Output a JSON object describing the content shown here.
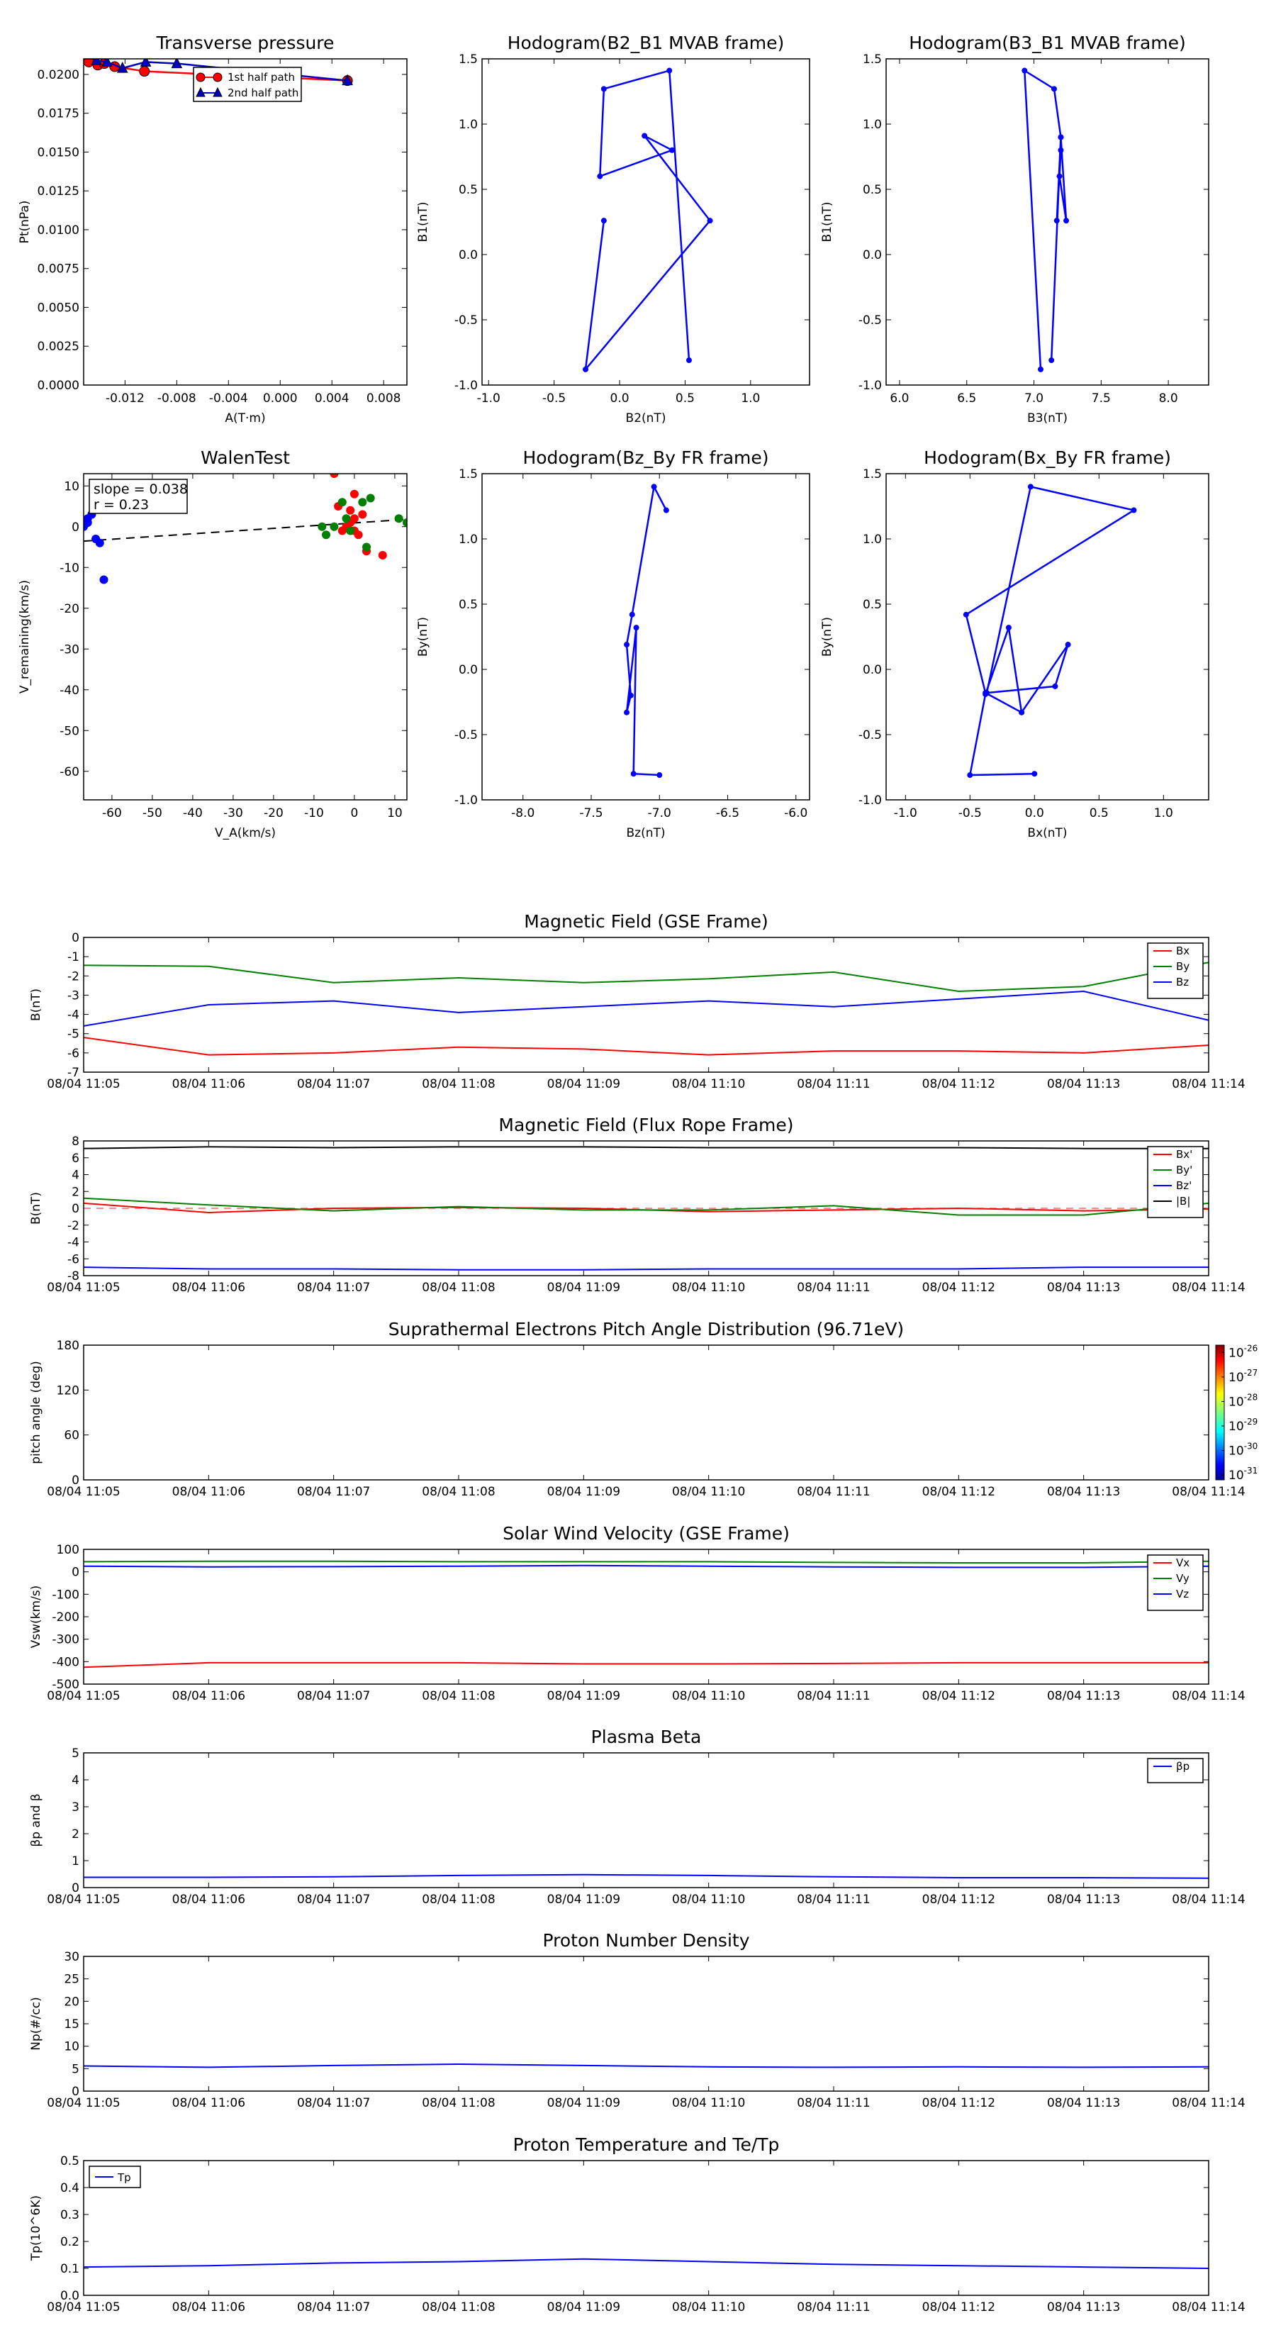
{
  "chart_data": [
    {
      "id": "transverse-pressure",
      "type": "scatter",
      "title": "Transverse pressure",
      "xlabel": "A(T·m)",
      "ylabel": "Pt(nPa)",
      "xlim": [
        -0.0152,
        0.0098
      ],
      "ylim": [
        0,
        0.021
      ],
      "xticks": [
        "-0.012",
        "-0.008",
        "-0.004",
        "0.000",
        "0.004",
        "0.008"
      ],
      "xtick_values": [
        -0.012,
        -0.008,
        -0.004,
        0.0,
        0.004,
        0.008
      ],
      "yticks": [
        "0.0000",
        "0.0025",
        "0.0050",
        "0.0075",
        "0.0100",
        "0.0125",
        "0.0150",
        "0.0175",
        "0.0200"
      ],
      "ytick_values": [
        0,
        0.0025,
        0.005,
        0.0075,
        0.01,
        0.0125,
        0.015,
        0.0175,
        0.02
      ],
      "legend": "top-right",
      "series": [
        {
          "name": "1st half path",
          "color": "#ff0000",
          "marker": "circle",
          "x": [
            -0.0148,
            -0.0141,
            -0.0136,
            -0.0128,
            -0.0105,
            0.0052
          ],
          "y": [
            0.0208,
            0.0206,
            0.0207,
            0.0205,
            0.0202,
            0.0196
          ]
        },
        {
          "name": "2nd half path",
          "color": "#0000bf",
          "marker": "triangle",
          "x": [
            0.0052,
            -0.008,
            -0.0104,
            -0.0122,
            -0.0134,
            -0.0142
          ],
          "y": [
            0.0196,
            0.0207,
            0.0208,
            0.0204,
            0.0208,
            0.0209
          ]
        }
      ]
    },
    {
      "id": "hodogram-b2-b1",
      "type": "line",
      "title": "Hodogram(B2_B1 MVAB frame)",
      "xlabel": "B2(nT)",
      "ylabel": "B1(nT)",
      "xlim": [
        -1.05,
        1.45
      ],
      "ylim": [
        -1.0,
        1.5
      ],
      "xticks": [
        "-1.0",
        "-0.5",
        "0.0",
        "0.5",
        "1.0"
      ],
      "xtick_values": [
        -1.0,
        -0.5,
        0.0,
        0.5,
        1.0
      ],
      "yticks": [
        "-1.0",
        "-0.5",
        "0.0",
        "0.5",
        "1.0",
        "1.5"
      ],
      "ytick_values": [
        -1.0,
        -0.5,
        0.0,
        0.5,
        1.0,
        1.5
      ],
      "series": [
        {
          "color": "#0000ff",
          "x": [
            0.53,
            0.38,
            -0.12,
            -0.15,
            0.4,
            0.19,
            0.69,
            -0.26,
            -0.12
          ],
          "y": [
            -0.81,
            1.41,
            1.27,
            0.6,
            0.8,
            0.91,
            0.26,
            -0.88,
            0.26
          ]
        }
      ]
    },
    {
      "id": "hodogram-b3-b1",
      "type": "line",
      "title": "Hodogram(B3_B1 MVAB frame)",
      "xlabel": "B3(nT)",
      "ylabel": "B1(nT)",
      "xlim": [
        5.9,
        8.3
      ],
      "ylim": [
        -1.0,
        1.5
      ],
      "xticks": [
        "6.0",
        "6.5",
        "7.0",
        "7.5",
        "8.0"
      ],
      "xtick_values": [
        6.0,
        6.5,
        7.0,
        7.5,
        8.0
      ],
      "yticks": [
        "-1.0",
        "-0.5",
        "0.0",
        "0.5",
        "1.0",
        "1.5"
      ],
      "ytick_values": [
        -1.0,
        -0.5,
        0.0,
        0.5,
        1.0,
        1.5
      ],
      "series": [
        {
          "color": "#0000ff",
          "x": [
            7.05,
            6.93,
            7.15,
            7.2,
            7.17,
            7.2,
            7.19,
            7.24,
            7.2,
            7.13
          ],
          "y": [
            -0.88,
            1.41,
            1.27,
            0.9,
            0.26,
            0.8,
            0.6,
            0.26,
            0.9,
            -0.81
          ]
        }
      ]
    },
    {
      "id": "walen-test",
      "type": "scatter",
      "title": "WalenTest",
      "xlabel": "V_A(km/s)",
      "ylabel": "V_remaining(km/s)",
      "xlim": [
        -67,
        13
      ],
      "ylim": [
        -67,
        13
      ],
      "xticks": [
        "-60",
        "-50",
        "-40",
        "-30",
        "-20",
        "-10",
        "0",
        "10"
      ],
      "xtick_values": [
        -60,
        -50,
        -40,
        -30,
        -20,
        -10,
        0,
        10
      ],
      "yticks": [
        "10",
        "0",
        "-10",
        "-20",
        "-30",
        "-40",
        "-50",
        "-60"
      ],
      "ytick_values": [
        10,
        0,
        -10,
        -20,
        -30,
        -40,
        -50,
        -60
      ],
      "annotation": [
        "slope = 0.038",
        "r = 0.23"
      ],
      "fit": {
        "slope": 0.038,
        "intercept": 1.3
      },
      "series": [
        {
          "color": "#ff0000",
          "x": [
            -5,
            0,
            -4,
            -1,
            0,
            2,
            1,
            -2,
            3,
            7,
            -3,
            0,
            -1
          ],
          "y": [
            13,
            8,
            5,
            4,
            2,
            3,
            -2,
            0,
            -6,
            -7,
            -1,
            -1,
            1
          ]
        },
        {
          "color": "#008000",
          "x": [
            -8,
            -3,
            2,
            4,
            3,
            -7,
            -5,
            -1,
            11,
            13,
            -2
          ],
          "y": [
            0,
            6,
            6,
            7,
            -5,
            -2,
            0,
            -1,
            2,
            1,
            2
          ]
        },
        {
          "color": "#0000ff",
          "x": [
            -66,
            -65,
            -64,
            -63,
            -62,
            -67,
            -66
          ],
          "y": [
            2,
            3,
            -3,
            -4,
            -13,
            0,
            1
          ]
        }
      ]
    },
    {
      "id": "hodogram-bz-by",
      "type": "line",
      "title": "Hodogram(Bz_By FR frame)",
      "xlabel": "Bz(nT)",
      "ylabel": "By(nT)",
      "xlim": [
        -8.3,
        -5.9
      ],
      "ylim": [
        -1.0,
        1.5
      ],
      "xticks": [
        "-8.0",
        "-7.5",
        "-7.0",
        "-6.5",
        "-6.0"
      ],
      "xtick_values": [
        -8.0,
        -7.5,
        -7.0,
        -6.5,
        -6.0
      ],
      "yticks": [
        "-1.0",
        "-0.5",
        "0.0",
        "0.5",
        "1.0",
        "1.5"
      ],
      "ytick_values": [
        -1.0,
        -0.5,
        0.0,
        0.5,
        1.0,
        1.5
      ],
      "series": [
        {
          "color": "#0000ff",
          "x": [
            -7.0,
            -7.19,
            -7.17,
            -7.24,
            -7.21,
            -7.24,
            -7.2,
            -7.04,
            -6.95
          ],
          "y": [
            -0.81,
            -0.8,
            0.32,
            -0.33,
            -0.2,
            0.19,
            0.42,
            1.4,
            1.22
          ]
        }
      ]
    },
    {
      "id": "hodogram-bx-by",
      "type": "line",
      "title": "Hodogram(Bx_By FR frame)",
      "xlabel": "Bx(nT)",
      "ylabel": "By(nT)",
      "xlim": [
        -1.15,
        1.35
      ],
      "ylim": [
        -1.0,
        1.5
      ],
      "xticks": [
        "-1.0",
        "-0.5",
        "0.0",
        "0.5",
        "1.0"
      ],
      "xtick_values": [
        -1.0,
        -0.5,
        0.0,
        0.5,
        1.0
      ],
      "yticks": [
        "-1.0",
        "-0.5",
        "0.0",
        "0.5",
        "1.0",
        "1.5"
      ],
      "ytick_values": [
        -1.0,
        -0.5,
        0.0,
        0.5,
        1.0,
        1.5
      ],
      "series": [
        {
          "color": "#0000ff",
          "x": [
            0.0,
            -0.5,
            -0.38,
            -0.2,
            -0.1,
            -0.38,
            -0.53,
            0.77,
            -0.03,
            -0.37,
            0.16,
            0.26,
            -0.1
          ],
          "y": [
            -0.8,
            -0.81,
            -0.19,
            0.32,
            -0.33,
            -0.18,
            0.42,
            1.22,
            1.4,
            -0.18,
            -0.13,
            0.19,
            -0.33
          ]
        }
      ]
    },
    {
      "id": "magnetic-field-gse",
      "type": "line",
      "title": "Magnetic Field (GSE Frame)",
      "xlabel": "",
      "ylabel": "B(nT)",
      "ylim": [
        -7,
        0
      ],
      "yticks": [
        "0",
        "-1",
        "-2",
        "-3",
        "-4",
        "-5",
        "-6",
        "-7"
      ],
      "ytick_values": [
        0,
        -1,
        -2,
        -3,
        -4,
        -5,
        -6,
        -7
      ],
      "legend": "top-right",
      "series": [
        {
          "name": "Bx",
          "color": "#ff0000",
          "values": [
            -5.2,
            -6.1,
            -6.0,
            -5.7,
            -5.8,
            -6.1,
            -5.9,
            -5.9,
            -6.0,
            -5.6
          ]
        },
        {
          "name": "By",
          "color": "#008000",
          "values": [
            -1.45,
            -1.5,
            -2.35,
            -2.1,
            -2.35,
            -2.15,
            -1.8,
            -2.8,
            -2.55,
            -1.3
          ]
        },
        {
          "name": "Bz",
          "color": "#0000ff",
          "values": [
            -4.6,
            -3.5,
            -3.3,
            -3.9,
            -3.6,
            -3.3,
            -3.6,
            -3.2,
            -2.8,
            -4.3
          ]
        }
      ]
    },
    {
      "id": "magnetic-field-fr",
      "type": "line",
      "title": "Magnetic Field (Flux Rope Frame)",
      "xlabel": "",
      "ylabel": "B(nT)",
      "ylim": [
        -8,
        8
      ],
      "yticks": [
        "8",
        "6",
        "4",
        "2",
        "0",
        "-2",
        "-4",
        "-6",
        "-8"
      ],
      "ytick_values": [
        8,
        6,
        4,
        2,
        0,
        -2,
        -4,
        -6,
        -8
      ],
      "legend": "top-right",
      "series": [
        {
          "name": "Bx'",
          "color": "#ff0000",
          "values": [
            0.6,
            -0.5,
            0.0,
            0.1,
            0.0,
            -0.4,
            -0.2,
            0.0,
            -0.3,
            -0.1
          ]
        },
        {
          "name": "By'",
          "color": "#008000",
          "values": [
            1.2,
            0.4,
            -0.3,
            0.2,
            -0.2,
            -0.2,
            0.3,
            -0.8,
            -0.8,
            0.6
          ]
        },
        {
          "name": "Bz'",
          "color": "#0000ff",
          "values": [
            -7.0,
            -7.2,
            -7.2,
            -7.3,
            -7.3,
            -7.2,
            -7.2,
            -7.2,
            -7.0,
            -7.0
          ]
        },
        {
          "name": "|B|",
          "color": "#000000",
          "values": [
            7.1,
            7.3,
            7.2,
            7.3,
            7.3,
            7.2,
            7.2,
            7.2,
            7.1,
            7.1
          ]
        }
      ]
    },
    {
      "id": "pitch-angle",
      "type": "heatmap",
      "title": "Suprathermal Electrons Pitch Angle Distribution (96.71eV)",
      "xlabel": "",
      "ylabel": "pitch angle (deg)",
      "ylim": [
        0,
        180
      ],
      "yticks": [
        "180",
        "120",
        "60",
        "0"
      ],
      "ytick_values": [
        180,
        120,
        60,
        0
      ],
      "colorbar": {
        "labels": [
          "-26",
          "-27",
          "-28",
          "-29",
          "-30",
          "-31"
        ],
        "label_values": [
          -26,
          -27,
          -28,
          -29,
          -30,
          -31
        ],
        "range": [
          -31.2,
          -25.7
        ],
        "base": "10"
      }
    },
    {
      "id": "solar-wind-velocity",
      "type": "line",
      "title": "Solar Wind Velocity (GSE Frame)",
      "xlabel": "",
      "ylabel": "Vsw(km/s)",
      "ylim": [
        -500,
        100
      ],
      "yticks": [
        "100",
        "0",
        "-100",
        "-200",
        "-300",
        "-400",
        "-500"
      ],
      "ytick_values": [
        100,
        0,
        -100,
        -200,
        -300,
        -400,
        -500
      ],
      "legend": "top-right",
      "series": [
        {
          "name": "Vx",
          "color": "#ff0000",
          "values": [
            -425,
            -405,
            -405,
            -405,
            -410,
            -410,
            -408,
            -405,
            -405,
            -405
          ]
        },
        {
          "name": "Vy",
          "color": "#008000",
          "values": [
            45,
            47,
            47,
            45,
            45,
            45,
            42,
            40,
            40,
            47
          ]
        },
        {
          "name": "Vz",
          "color": "#0000ff",
          "values": [
            25,
            22,
            23,
            25,
            28,
            25,
            22,
            20,
            20,
            25
          ]
        }
      ]
    },
    {
      "id": "plasma-beta",
      "type": "line",
      "title": "Plasma Beta",
      "xlabel": "",
      "ylabel": "βp and β",
      "ylim": [
        0,
        5
      ],
      "yticks": [
        "5",
        "4",
        "3",
        "2",
        "1",
        "0"
      ],
      "ytick_values": [
        5,
        4,
        3,
        2,
        1,
        0
      ],
      "legend": "top-right",
      "series": [
        {
          "name": "βp",
          "color": "#0000ff",
          "values": [
            0.38,
            0.38,
            0.4,
            0.45,
            0.48,
            0.45,
            0.4,
            0.37,
            0.37,
            0.35
          ]
        }
      ]
    },
    {
      "id": "proton-density",
      "type": "line",
      "title": "Proton Number Density",
      "xlabel": "",
      "ylabel": "Np(#/cc)",
      "ylim": [
        0,
        30
      ],
      "yticks": [
        "30",
        "25",
        "20",
        "15",
        "10",
        "5",
        "0"
      ],
      "ytick_values": [
        30,
        25,
        20,
        15,
        10,
        5,
        0
      ],
      "series": [
        {
          "color": "#0000ff",
          "values": [
            5.6,
            5.3,
            5.7,
            6.0,
            5.7,
            5.4,
            5.3,
            5.4,
            5.3,
            5.4
          ]
        }
      ]
    },
    {
      "id": "proton-temperature",
      "type": "line",
      "title": "Proton Temperature and Te/Tp",
      "xlabel": "",
      "ylabel": "Tp(10^6K)",
      "ylim": [
        0,
        0.5
      ],
      "yticks": [
        "0.5",
        "0.4",
        "0.3",
        "0.2",
        "0.1",
        "0.0"
      ],
      "ytick_values": [
        0.5,
        0.4,
        0.3,
        0.2,
        0.1,
        0.0
      ],
      "legend": "top-left",
      "series": [
        {
          "name": "Tp",
          "color": "#0000ff",
          "values": [
            0.105,
            0.11,
            0.12,
            0.125,
            0.135,
            0.125,
            0.115,
            0.11,
            0.105,
            0.1
          ]
        }
      ]
    }
  ],
  "time_axis": {
    "categories": [
      "08/04 11:05",
      "08/04 11:06",
      "08/04 11:07",
      "08/04 11:08",
      "08/04 11:09",
      "08/04 11:10",
      "08/04 11:11",
      "08/04 11:12",
      "08/04 11:13",
      "08/04 11:14"
    ]
  }
}
